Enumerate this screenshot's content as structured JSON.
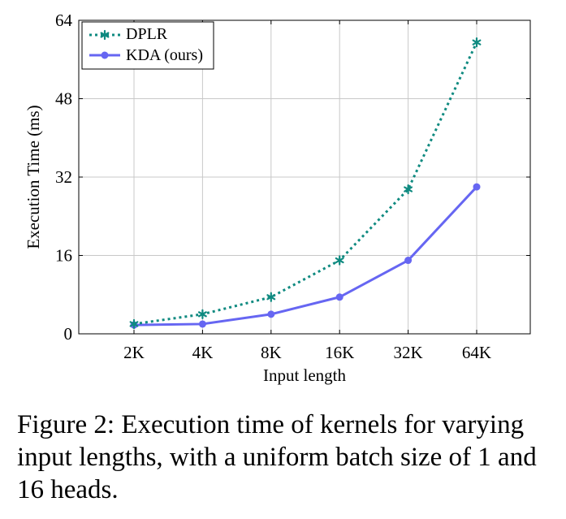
{
  "chart_data": {
    "type": "line",
    "xlabel": "Input length",
    "ylabel": "Execution Time (ms)",
    "categories": [
      "2K",
      "4K",
      "8K",
      "16K",
      "32K",
      "64K"
    ],
    "ylim": [
      0,
      64
    ],
    "yticks": [
      "0",
      "16",
      "32",
      "48",
      "64"
    ],
    "grid": true,
    "legend_position": "top-left",
    "series": [
      {
        "name": "DPLR",
        "style": "dotted",
        "marker": "asterisk",
        "color": "#0f8a80",
        "values": [
          2,
          4,
          7.5,
          15,
          29.5,
          59.5
        ]
      },
      {
        "name": "KDA (ours)",
        "style": "solid",
        "marker": "circle",
        "color": "#6666f2",
        "values": [
          1.8,
          2,
          4,
          7.5,
          15,
          30
        ]
      }
    ]
  },
  "caption": "Figure 2: Execution time of kernels for varying input lengths, with a uniform batch size of 1 and 16 heads."
}
